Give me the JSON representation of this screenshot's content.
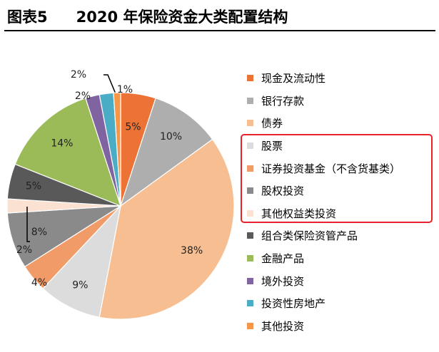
{
  "figure": {
    "label": "图表5",
    "title": "2020 年保险资金大类配置结构"
  },
  "highlight_color": "#e8222a",
  "chart_data": {
    "type": "pie",
    "title": "2020 年保险资金大类配置结构",
    "unit": "%",
    "start_angle_deg": 0,
    "direction": "clockwise",
    "legend_position": "right",
    "slices": [
      {
        "name": "现金及流动性",
        "value": 5,
        "label": "5%",
        "color": "#ec7335"
      },
      {
        "name": "银行存款",
        "value": 10,
        "label": "10%",
        "color": "#aeaeae"
      },
      {
        "name": "债券",
        "value": 38,
        "label": "38%",
        "color": "#f7be92"
      },
      {
        "name": "股票",
        "value": 9,
        "label": "9%",
        "color": "#dcdcdc"
      },
      {
        "name": "证券投资基金（不含货基类）",
        "value": 4,
        "label": "4%",
        "color": "#f19c68"
      },
      {
        "name": "股权投资",
        "value": 8,
        "label": "8%",
        "color": "#8a8a8a"
      },
      {
        "name": "其他权益类投资",
        "value": 2,
        "label": "2%",
        "color": "#fbe1d2"
      },
      {
        "name": "组合类保险资管产品",
        "value": 5,
        "label": "5%",
        "color": "#595959"
      },
      {
        "name": "金融产品",
        "value": 14,
        "label": "14%",
        "color": "#9bbb59"
      },
      {
        "name": "境外投资",
        "value": 2,
        "label": "2%",
        "color": "#8064a2"
      },
      {
        "name": "投资性房地产",
        "value": 2,
        "label": "2%",
        "color": "#4bacc6"
      },
      {
        "name": "其他投资",
        "value": 1,
        "label": "1%",
        "color": "#f79646"
      }
    ],
    "highlighted": [
      "股票",
      "证券投资基金（不含货基类）",
      "股权投资",
      "其他权益类投资"
    ]
  }
}
